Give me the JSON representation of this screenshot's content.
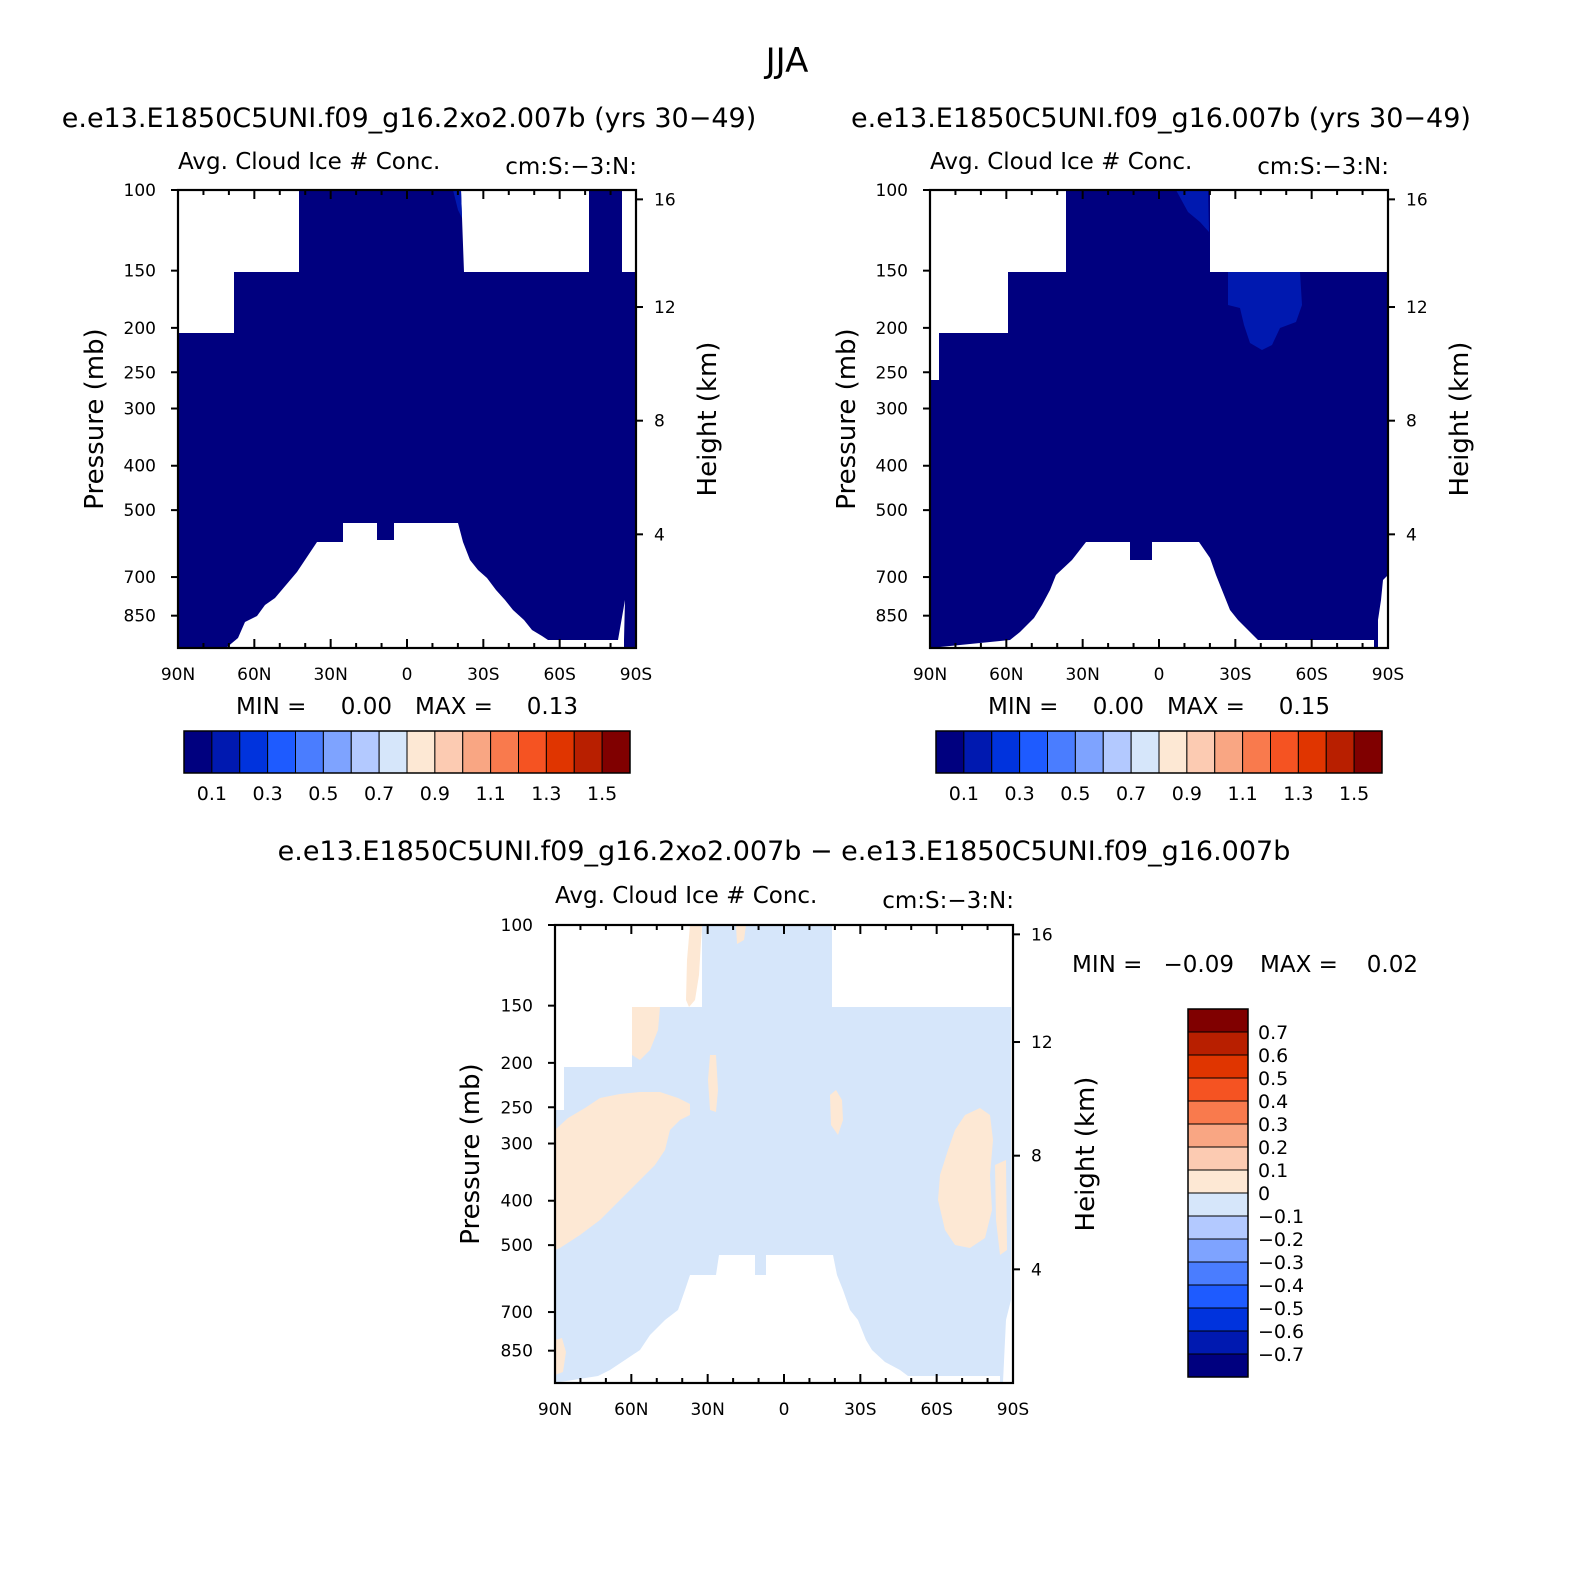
{
  "figure_title": "JJA",
  "colors": {
    "seq": [
      "#00007f",
      "#0019b0",
      "#0033dd",
      "#1e5bff",
      "#4a7dff",
      "#7ea3ff",
      "#b3c9ff",
      "#d6e6fa",
      "#fde8d4",
      "#fccbb2",
      "#f9a683",
      "#f97a4d",
      "#f55322",
      "#e03500",
      "#b81f00",
      "#800000"
    ],
    "diff": [
      "#00007f",
      "#0019b0",
      "#0033dd",
      "#1e5bff",
      "#4a7dff",
      "#7ea3ff",
      "#b3c9ff",
      "#d6e6fa",
      "#fde8d4",
      "#fccbb2",
      "#f9a683",
      "#f97a4d",
      "#f55322",
      "#e03500",
      "#b81f00",
      "#800000"
    ]
  },
  "chart_data": [
    {
      "type": "heatmap",
      "id": "left",
      "title": "e.e13.E1850C5UNI.f09_g16.2xo2.007b (yrs 30−49)",
      "left_string": "Avg. Cloud Ice # Conc.",
      "right_string": "cm:S:−3:N:",
      "ylabel": "Pressure (mb)",
      "ylabel_right": "Height (km)",
      "x_ticks": [
        "90N",
        "60N",
        "30N",
        "0",
        "30S",
        "60S",
        "90S"
      ],
      "x_values": [
        90,
        60,
        30,
        0,
        -30,
        -60,
        -90
      ],
      "p_ticks": [
        100,
        150,
        200,
        250,
        300,
        400,
        500,
        700,
        850
      ],
      "p_range": [
        100,
        1000
      ],
      "height_ticks": [
        16,
        12,
        8,
        4
      ],
      "min_label": "MIN =",
      "min_value": "0.00",
      "max_label": "MAX =",
      "max_value": "0.13",
      "colorbar_labels": [
        "0.1",
        "0.3",
        "0.5",
        "0.7",
        "0.9",
        "1.1",
        "1.3",
        "1.5"
      ],
      "cloud_region": [
        [
          -90,
          150
        ],
        [
          -90,
          1000
        ],
        [
          90,
          1000
        ],
        [
          90,
          200
        ]
      ]
    },
    {
      "type": "heatmap",
      "id": "right",
      "title": "e.e13.E1850C5UNI.f09_g16.007b (yrs 30−49)",
      "left_string": "Avg. Cloud Ice # Conc.",
      "right_string": "cm:S:−3:N:",
      "ylabel": "Pressure (mb)",
      "ylabel_right": "Height (km)",
      "x_ticks": [
        "90N",
        "60N",
        "30N",
        "0",
        "30S",
        "60S",
        "90S"
      ],
      "x_values": [
        90,
        60,
        30,
        0,
        -30,
        -60,
        -90
      ],
      "p_ticks": [
        100,
        150,
        200,
        250,
        300,
        400,
        500,
        700,
        850
      ],
      "p_range": [
        100,
        1000
      ],
      "height_ticks": [
        16,
        12,
        8,
        4
      ],
      "min_label": "MIN =",
      "min_value": "0.00",
      "max_label": "MAX =",
      "max_value": "0.15",
      "colorbar_labels": [
        "0.1",
        "0.3",
        "0.5",
        "0.7",
        "0.9",
        "1.1",
        "1.3",
        "1.5"
      ]
    },
    {
      "type": "heatmap",
      "id": "diff",
      "title": "e.e13.E1850C5UNI.f09_g16.2xo2.007b − e.e13.E1850C5UNI.f09_g16.007b",
      "left_string": "Avg. Cloud Ice # Conc.",
      "right_string": "cm:S:−3:N:",
      "ylabel": "Pressure (mb)",
      "ylabel_right": "Height (km)",
      "x_ticks": [
        "90N",
        "60N",
        "30N",
        "0",
        "30S",
        "60S",
        "90S"
      ],
      "x_values": [
        90,
        60,
        30,
        0,
        -30,
        -60,
        -90
      ],
      "p_ticks": [
        100,
        150,
        200,
        250,
        300,
        400,
        500,
        700,
        850
      ],
      "p_range": [
        100,
        1000
      ],
      "height_ticks": [
        16,
        12,
        8,
        4
      ],
      "min_label": "MIN =",
      "min_value": "−0.09",
      "max_label": "MAX =",
      "max_value": "0.02",
      "colorbar_labels": [
        "0.7",
        "0.6",
        "0.5",
        "0.4",
        "0.3",
        "0.2",
        "0.1",
        "0",
        "−0.1",
        "−0.2",
        "−0.3",
        "−0.4",
        "−0.5",
        "−0.6",
        "−0.7"
      ]
    }
  ]
}
